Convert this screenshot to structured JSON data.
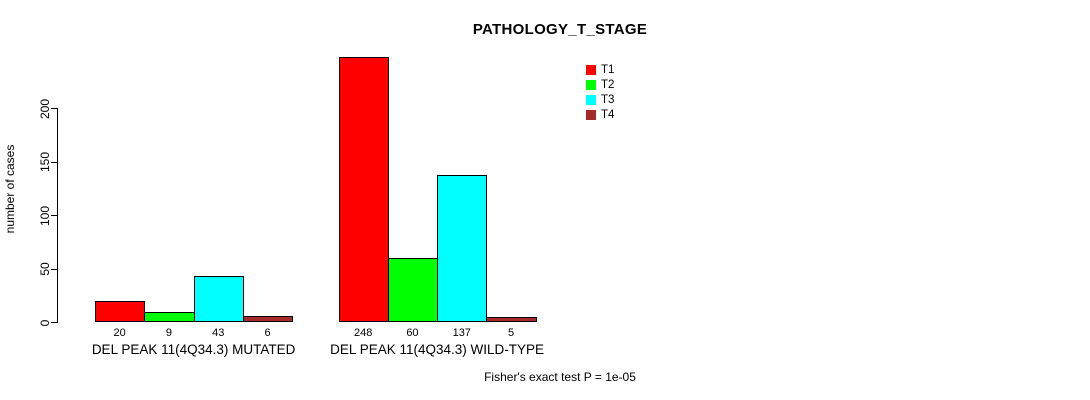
{
  "chart_data": {
    "type": "bar",
    "title": "PATHOLOGY_T_STAGE",
    "ylabel": "number of cases",
    "xlabel": "",
    "footnote": "Fisher's exact test P = 1e-05",
    "categories": [
      "DEL PEAK 11(4Q34.3) MUTATED",
      "DEL PEAK 11(4Q34.3) WILD-TYPE"
    ],
    "series": [
      {
        "name": "T1",
        "color": "#FF0000",
        "values": [
          20,
          248
        ]
      },
      {
        "name": "T2",
        "color": "#00FF00",
        "values": [
          9,
          60
        ]
      },
      {
        "name": "T3",
        "color": "#00FFFF",
        "values": [
          43,
          137
        ]
      },
      {
        "name": "T4",
        "color": "#A52A2A",
        "values": [
          6,
          5
        ]
      }
    ],
    "yticks": [
      0,
      50,
      100,
      150,
      200
    ],
    "ylim": [
      0,
      250
    ],
    "bar_values_shown": true,
    "legend_position": "top-right",
    "grid": false,
    "axis_color": "#000000",
    "background_color": "#FFFFFF"
  }
}
